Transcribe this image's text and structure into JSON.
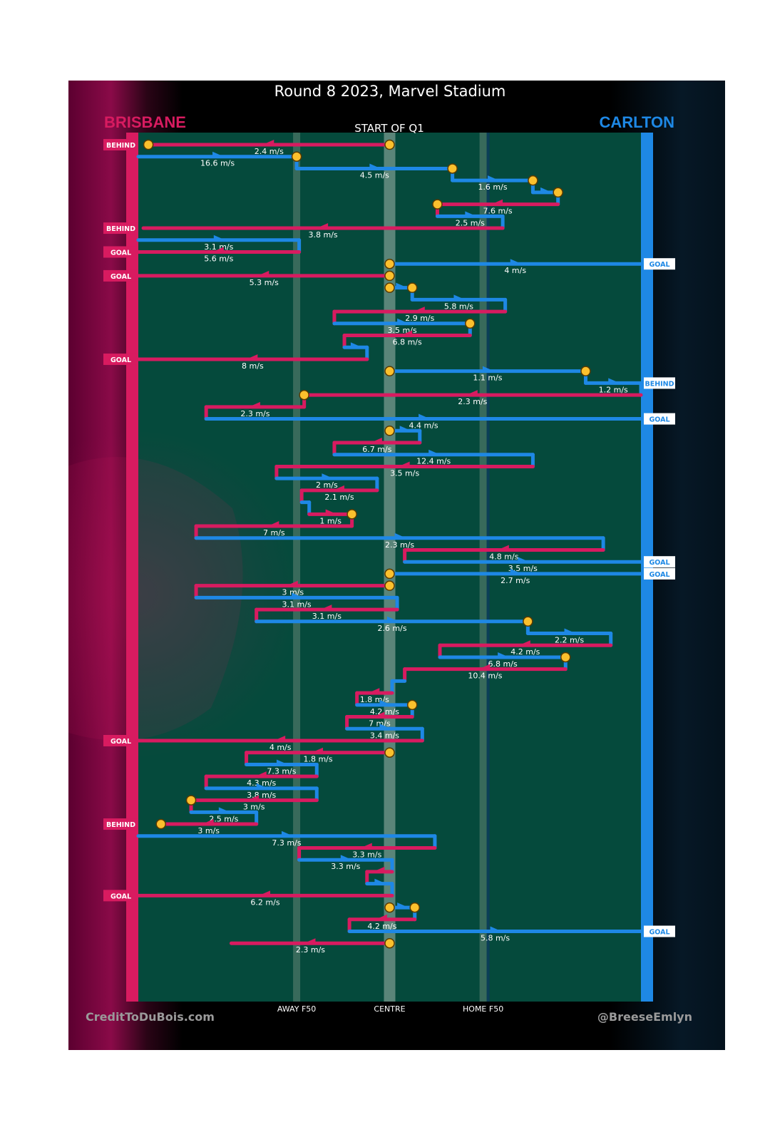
{
  "title": "Round 8 2023, Marvel Stadium",
  "teams": {
    "left": {
      "name": "BRISBANE",
      "color": "#d81b60"
    },
    "right": {
      "name": "CARLTON",
      "color": "#1e88e5"
    }
  },
  "period_label": "START OF Q1",
  "axis_labels": {
    "away_f50": "AWAY F50",
    "centre": "CENTRE",
    "home_f50": "HOME F50"
  },
  "credits": {
    "left": "CreditToDuBois.com",
    "right": "@BreeseEmlyn"
  },
  "colors": {
    "field": "#054a3c",
    "ball_marker": "#fbc02d",
    "brisbane": "#d81b60",
    "carlton": "#1e88e5"
  },
  "chart_data": {
    "type": "chain",
    "x_range": [
      0,
      100
    ],
    "x_landmarks": {
      "away_f50": 31.5,
      "centre": 50,
      "home_f50": 68.6
    },
    "chains": [
      {
        "team": "brisbane",
        "from": 50,
        "to": 2,
        "speed": "2.4 m/s",
        "start_marker": true,
        "end_marker": true,
        "outcome": "BEHIND"
      },
      {
        "team": "carlton",
        "from": 0,
        "to": 31.5,
        "speed": "16.6 m/s",
        "end_marker": true
      },
      {
        "team": "carlton",
        "from": 31.5,
        "to": 62.5,
        "speed": "4.5 m/s",
        "end_marker": true
      },
      {
        "team": "carlton",
        "from": 62.5,
        "to": 78.5,
        "speed": "1.6 m/s",
        "end_marker": true
      },
      {
        "team": "carlton",
        "from": 78.5,
        "to": 83.5,
        "speed": "",
        "end_marker": true
      },
      {
        "team": "brisbane",
        "from": 83.5,
        "to": 59.5,
        "speed": "7.6 m/s",
        "end_marker": true
      },
      {
        "team": "carlton",
        "from": 59.5,
        "to": 72.5,
        "speed": "2.5 m/s"
      },
      {
        "team": "brisbane",
        "from": 72.5,
        "to": 1,
        "speed": "3.8 m/s",
        "outcome": "BEHIND"
      },
      {
        "team": "carlton",
        "from": 0,
        "to": 32,
        "speed": "3.1 m/s"
      },
      {
        "team": "brisbane",
        "from": 32,
        "to": 0,
        "speed": "5.6 m/s",
        "outcome": "GOAL"
      },
      {
        "team": "carlton",
        "from": 50,
        "to": 100,
        "speed": "4 m/s",
        "start_marker": true,
        "outcome": "GOAL"
      },
      {
        "team": "brisbane",
        "from": 50,
        "to": 0,
        "speed": "5.3 m/s",
        "start_marker": true,
        "outcome": "GOAL"
      },
      {
        "team": "carlton",
        "from": 50,
        "to": 54.5,
        "speed": "",
        "start_marker": true,
        "end_marker": true
      },
      {
        "team": "carlton",
        "from": 54.5,
        "to": 73,
        "speed": "5.8 m/s"
      },
      {
        "team": "brisbane",
        "from": 73,
        "to": 39,
        "speed": "2.9 m/s"
      },
      {
        "team": "carlton",
        "from": 39,
        "to": 66,
        "speed": "3.5 m/s",
        "end_marker": true
      },
      {
        "team": "brisbane",
        "from": 66,
        "to": 41,
        "speed": "6.8 m/s"
      },
      {
        "team": "carlton",
        "from": 41,
        "to": 45.5,
        "speed": ""
      },
      {
        "team": "brisbane",
        "from": 45.5,
        "to": 0,
        "speed": "8 m/s",
        "outcome": "GOAL"
      },
      {
        "team": "carlton",
        "from": 50,
        "to": 89,
        "speed": "1.1 m/s",
        "start_marker": true,
        "end_marker": true
      },
      {
        "team": "carlton",
        "from": 89,
        "to": 100,
        "speed": "1.2 m/s",
        "outcome": "BEHIND"
      },
      {
        "team": "brisbane",
        "from": 100,
        "to": 33,
        "speed": "2.3 m/s",
        "end_marker": true
      },
      {
        "team": "brisbane",
        "from": 33,
        "to": 13.5,
        "speed": "2.3 m/s"
      },
      {
        "team": "carlton",
        "from": 13.5,
        "to": 100,
        "speed": "4.4 m/s",
        "outcome": "GOAL"
      },
      {
        "team": "carlton",
        "from": 50,
        "to": 56,
        "speed": "",
        "start_marker": true
      },
      {
        "team": "brisbane",
        "from": 56,
        "to": 39,
        "speed": "6.7 m/s"
      },
      {
        "team": "carlton",
        "from": 39,
        "to": 78.5,
        "speed": "12.4 m/s"
      },
      {
        "team": "brisbane",
        "from": 78.5,
        "to": 27.5,
        "speed": "3.5 m/s"
      },
      {
        "team": "carlton",
        "from": 27.5,
        "to": 47.5,
        "speed": "2 m/s"
      },
      {
        "team": "brisbane",
        "from": 47.5,
        "to": 32.5,
        "speed": "2.1 m/s"
      },
      {
        "team": "carlton",
        "from": 32.5,
        "to": 34,
        "speed": ""
      },
      {
        "team": "brisbane",
        "from": 34,
        "to": 42.5,
        "speed": "1 m/s",
        "end_marker": true
      },
      {
        "team": "brisbane",
        "from": 42.5,
        "to": 11.5,
        "speed": "7 m/s"
      },
      {
        "team": "carlton",
        "from": 11.5,
        "to": 92.5,
        "speed": "2.3 m/s"
      },
      {
        "team": "brisbane",
        "from": 92.5,
        "to": 53,
        "speed": "4.8 m/s"
      },
      {
        "team": "carlton",
        "from": 53,
        "to": 100,
        "speed": "3.5 m/s",
        "outcome": "GOAL"
      },
      {
        "team": "carlton",
        "from": 50,
        "to": 100,
        "speed": "2.7 m/s",
        "start_marker": true,
        "outcome": "GOAL"
      },
      {
        "team": "brisbane",
        "from": 50,
        "to": 11.5,
        "speed": "3 m/s",
        "start_marker": true
      },
      {
        "team": "carlton",
        "from": 11.5,
        "to": 51.5,
        "speed": "3.1 m/s"
      },
      {
        "team": "brisbane",
        "from": 51.5,
        "to": 23.5,
        "speed": "3.1 m/s"
      },
      {
        "team": "carlton",
        "from": 23.5,
        "to": 77.5,
        "speed": "2.6 m/s",
        "end_marker": true
      },
      {
        "team": "carlton",
        "from": 77.5,
        "to": 94,
        "speed": "2.2 m/s"
      },
      {
        "team": "brisbane",
        "from": 94,
        "to": 60,
        "speed": "4.2 m/s"
      },
      {
        "team": "carlton",
        "from": 60,
        "to": 85,
        "speed": "6.8 m/s",
        "end_marker": true
      },
      {
        "team": "brisbane",
        "from": 85,
        "to": 53,
        "speed": "10.4 m/s"
      },
      {
        "team": "carlton",
        "from": 53,
        "to": 50.5,
        "speed": ""
      },
      {
        "team": "brisbane",
        "from": 50.5,
        "to": 43.5,
        "speed": "1.8 m/s"
      },
      {
        "team": "carlton",
        "from": 43.5,
        "to": 54.5,
        "speed": "4.2 m/s",
        "end_marker": true
      },
      {
        "team": "brisbane",
        "from": 54.5,
        "to": 41.5,
        "speed": "7 m/s"
      },
      {
        "team": "carlton",
        "from": 41.5,
        "to": 56.5,
        "speed": "3.4 m/s"
      },
      {
        "team": "brisbane",
        "from": 56.5,
        "to": 0,
        "speed": "4 m/s",
        "outcome": "GOAL"
      },
      {
        "team": "brisbane",
        "from": 50,
        "to": 21.5,
        "speed": "1.8 m/s",
        "start_marker": true
      },
      {
        "team": "carlton",
        "from": 21.5,
        "to": 35.5,
        "speed": "7.3 m/s"
      },
      {
        "team": "brisbane",
        "from": 35.5,
        "to": 13.5,
        "speed": "4.3 m/s"
      },
      {
        "team": "carlton",
        "from": 13.5,
        "to": 35.5,
        "speed": "3.8 m/s"
      },
      {
        "team": "brisbane",
        "from": 35.5,
        "to": 10.5,
        "speed": "3 m/s",
        "end_marker": true
      },
      {
        "team": "carlton",
        "from": 10.5,
        "to": 23.5,
        "speed": "2.5 m/s"
      },
      {
        "team": "brisbane",
        "from": 23.5,
        "to": 4.5,
        "speed": "3 m/s",
        "end_marker": true,
        "outcome": "BEHIND"
      },
      {
        "team": "carlton",
        "from": 0,
        "to": 59,
        "speed": "7.3 m/s"
      },
      {
        "team": "brisbane",
        "from": 59,
        "to": 32,
        "speed": "3.3 m/s"
      },
      {
        "team": "carlton",
        "from": 32,
        "to": 50.5,
        "speed": "3.3 m/s"
      },
      {
        "team": "brisbane",
        "from": 50.5,
        "to": 45.5,
        "speed": ""
      },
      {
        "team": "carlton",
        "from": 45.5,
        "to": 50.5,
        "speed": ""
      },
      {
        "team": "brisbane",
        "from": 50.5,
        "to": 0,
        "speed": "6.2 m/s",
        "outcome": "GOAL"
      },
      {
        "team": "carlton",
        "from": 50,
        "to": 55,
        "speed": "",
        "start_marker": true,
        "end_marker": true
      },
      {
        "team": "brisbane",
        "from": 55,
        "to": 42,
        "speed": "4.2 m/s"
      },
      {
        "team": "carlton",
        "from": 42,
        "to": 100,
        "speed": "5.8 m/s",
        "outcome": "GOAL"
      },
      {
        "team": "brisbane",
        "from": 50,
        "to": 18.5,
        "speed": "2.3 m/s",
        "start_marker": true
      }
    ]
  }
}
